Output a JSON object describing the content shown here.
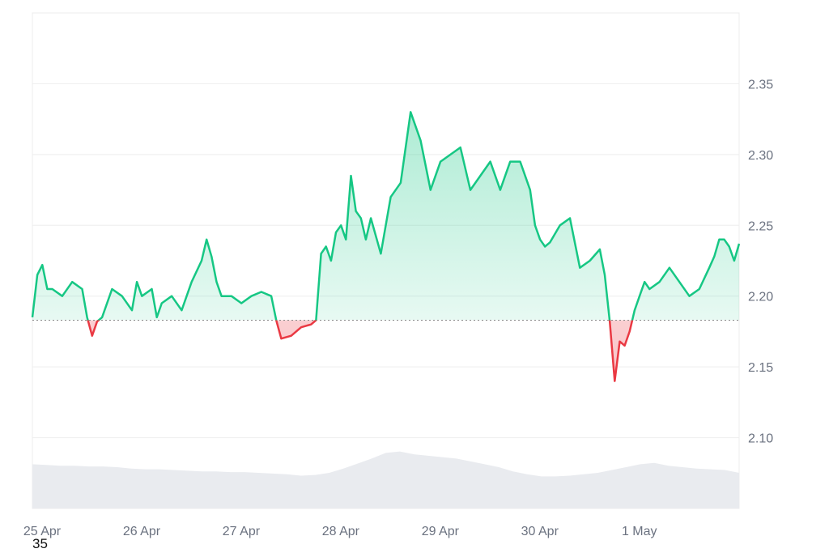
{
  "chart_data": {
    "type": "area",
    "title": "",
    "xlabel": "",
    "ylabel": "",
    "baseline": 2.183,
    "ylim": [
      2.05,
      2.4
    ],
    "xlim": [
      0,
      7.1
    ],
    "y_ticks": [
      2.1,
      2.15,
      2.2,
      2.25,
      2.3,
      2.35
    ],
    "y_tick_labels": [
      "2.10",
      "2.15",
      "2.20",
      "2.25",
      "2.30",
      "2.35"
    ],
    "x_ticks": [
      0,
      1,
      2,
      3,
      4,
      5,
      6
    ],
    "x_tick_labels": [
      "25 Apr",
      "26 Apr",
      "27 Apr",
      "28 Apr",
      "29 Apr",
      "30 Apr",
      "1 May"
    ],
    "grid": true,
    "colors": {
      "above": "#16c784",
      "below": "#ea3943",
      "volume": "#e9ebef",
      "grid": "#eeeeee",
      "baseline": "#888888"
    },
    "series": [
      {
        "x": [
          0,
          0.05,
          0.1,
          0.15,
          0.2,
          0.3,
          0.4,
          0.5,
          0.55,
          0.6,
          0.65,
          0.7,
          0.8,
          0.9,
          1.0,
          1.05,
          1.1,
          1.2,
          1.25,
          1.3,
          1.4,
          1.5,
          1.6,
          1.7,
          1.75,
          1.8,
          1.85,
          1.9,
          2.0,
          2.1,
          2.2,
          2.3,
          2.4,
          2.45,
          2.5,
          2.6,
          2.7,
          2.8,
          2.85,
          2.9,
          2.95,
          3.0,
          3.05,
          3.1,
          3.15,
          3.2,
          3.25,
          3.3,
          3.35,
          3.4,
          3.5,
          3.6,
          3.7,
          3.8,
          3.9,
          4.0,
          4.1,
          4.2,
          4.3,
          4.4,
          4.5,
          4.6,
          4.7,
          4.8,
          4.9,
          5.0,
          5.05,
          5.1,
          5.15,
          5.2,
          5.3,
          5.4,
          5.5,
          5.6,
          5.7,
          5.75,
          5.8,
          5.85,
          5.9,
          5.95,
          6.0,
          6.05,
          6.1,
          6.15,
          6.2,
          6.3,
          6.4,
          6.5,
          6.6,
          6.7,
          6.8,
          6.85,
          6.9,
          6.95,
          7.0,
          7.05,
          7.1
        ],
        "y": [
          2.185,
          2.215,
          2.222,
          2.205,
          2.205,
          2.2,
          2.21,
          2.205,
          2.185,
          2.172,
          2.182,
          2.185,
          2.205,
          2.2,
          2.19,
          2.21,
          2.2,
          2.205,
          2.185,
          2.195,
          2.2,
          2.19,
          2.21,
          2.225,
          2.24,
          2.228,
          2.21,
          2.2,
          2.2,
          2.195,
          2.2,
          2.203,
          2.2,
          2.183,
          2.17,
          2.172,
          2.178,
          2.18,
          2.183,
          2.23,
          2.235,
          2.225,
          2.245,
          2.25,
          2.24,
          2.285,
          2.26,
          2.255,
          2.24,
          2.255,
          2.23,
          2.27,
          2.28,
          2.33,
          2.31,
          2.275,
          2.295,
          2.3,
          2.305,
          2.275,
          2.285,
          2.295,
          2.275,
          2.295,
          2.295,
          2.275,
          2.25,
          2.24,
          2.235,
          2.238,
          2.25,
          2.255,
          2.22,
          2.225,
          2.233,
          2.215,
          2.182,
          2.14,
          2.168,
          2.165,
          2.175,
          2.19,
          2.2,
          2.21,
          2.205,
          2.21,
          2.22,
          2.21,
          2.2,
          2.205,
          2.22,
          2.228,
          2.24,
          2.24,
          2.235,
          2.225,
          2.237
        ]
      }
    ],
    "volume": [
      0.62,
      0.61,
      0.6,
      0.6,
      0.59,
      0.59,
      0.58,
      0.56,
      0.55,
      0.55,
      0.54,
      0.53,
      0.52,
      0.52,
      0.51,
      0.51,
      0.5,
      0.49,
      0.48,
      0.46,
      0.47,
      0.5,
      0.56,
      0.63,
      0.7,
      0.78,
      0.8,
      0.76,
      0.74,
      0.72,
      0.7,
      0.66,
      0.62,
      0.58,
      0.52,
      0.48,
      0.45,
      0.45,
      0.46,
      0.48,
      0.5,
      0.54,
      0.58,
      0.62,
      0.64,
      0.6,
      0.58,
      0.56,
      0.55,
      0.54,
      0.5
    ]
  },
  "corner_label": "35"
}
